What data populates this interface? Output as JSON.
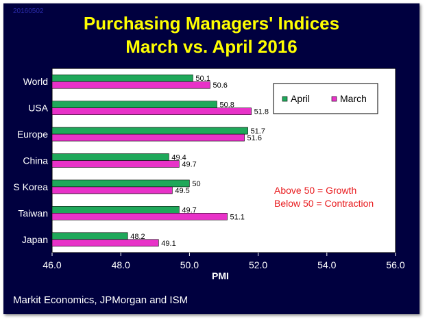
{
  "header": {
    "stamp": "20160502",
    "title_line1": "Purchasing Managers' Indices",
    "title_line2": "March vs. April 2016"
  },
  "footer": {
    "source": "Markit Economics, JPMorgan and ISM"
  },
  "chart_data": {
    "type": "bar",
    "orientation": "horizontal",
    "categories": [
      "World",
      "USA",
      "Europe",
      "China",
      "S Korea",
      "Taiwan",
      "Japan"
    ],
    "series": [
      {
        "name": "April",
        "values": [
          50.1,
          50.8,
          51.7,
          49.4,
          50.0,
          49.7,
          48.2
        ],
        "labels": [
          "50.1",
          "50.8",
          "51.7",
          "49.4",
          "50",
          "49.7",
          "48.2"
        ],
        "color": "#1fa85a"
      },
      {
        "name": "March",
        "values": [
          50.6,
          51.8,
          51.6,
          49.7,
          49.5,
          51.1,
          49.1
        ],
        "labels": [
          "50.6",
          "51.8",
          "51.6",
          "49.7",
          "49.5",
          "51.1",
          "49.1"
        ],
        "color": "#e832c8"
      }
    ],
    "xlabel": "PMI",
    "xlim": [
      46.0,
      56.0
    ],
    "xticks": [
      "46.0",
      "48.0",
      "50.0",
      "52.0",
      "54.0",
      "56.0"
    ],
    "legend_position": "top-right",
    "annotations": [
      "Above 50 = Growth",
      "Below 50 = Contraction"
    ],
    "annotation_color": "#e8191c",
    "plot_background": "#ffffff",
    "grid": false
  }
}
